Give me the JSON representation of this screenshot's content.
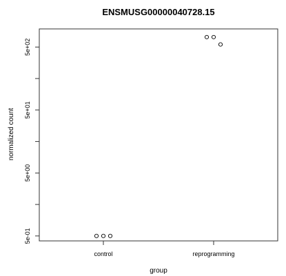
{
  "chart_data": {
    "type": "scatter",
    "title": "ENSMUSG00000040728.15",
    "xlabel": "group",
    "ylabel": "normalized count",
    "categories": [
      "control",
      "reprogramming"
    ],
    "y_scale": "log",
    "ylim": [
      0.45,
      900
    ],
    "y_ticks": [
      0.5,
      5,
      50,
      500
    ],
    "y_tick_labels": [
      "5e-01",
      "5e+00",
      "5e+01",
      "5e+02"
    ],
    "grid": false,
    "points": [
      {
        "category": "control",
        "y": 0.5
      },
      {
        "category": "control",
        "y": 0.5
      },
      {
        "category": "control",
        "y": 0.5
      },
      {
        "category": "reprogramming",
        "y": 720
      },
      {
        "category": "reprogramming",
        "y": 720
      },
      {
        "category": "reprogramming",
        "y": 550
      }
    ]
  }
}
